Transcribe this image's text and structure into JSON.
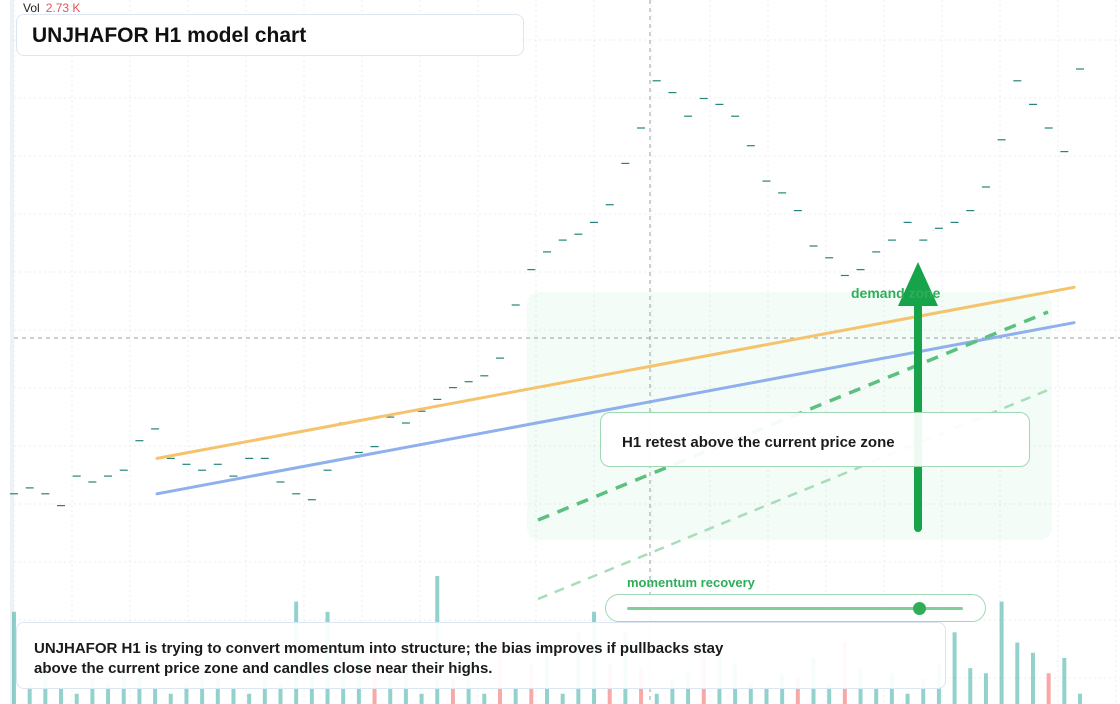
{
  "title": "UNJHAFOR H1 model chart",
  "volume": {
    "label": "Vol",
    "value": "2.73 K"
  },
  "annotations": {
    "callout": "H1 retest above the current price zone",
    "zone_label": "demand zone",
    "momentum_label": "momentum recovery",
    "momentum_level": 0.87,
    "note": "UNJHAFOR H1 is trying to convert momentum into structure; the bias improves if pullbacks stay above the current price zone and candles close near their highs."
  },
  "colors": {
    "up": "#26a69a",
    "down": "#ef5350",
    "ma_fast": "#f5c36b",
    "ma_slow": "#8fb0ec",
    "accent": "#16a34a"
  },
  "chart_data": {
    "type": "candlestick",
    "title": "UNJHAFOR H1 model chart",
    "grid": true,
    "ylim": [
      0,
      100
    ],
    "note": "Unlabeled price axis; values are relative price levels on a 0-100 scale.",
    "price": [
      {
        "x": 1,
        "open": 18,
        "close": 18
      },
      {
        "x": 2,
        "open": 19,
        "close": 19
      },
      {
        "x": 3,
        "open": 18,
        "close": 18
      },
      {
        "x": 4,
        "open": 16,
        "close": 16
      },
      {
        "x": 5,
        "open": 21,
        "close": 21
      },
      {
        "x": 6,
        "open": 20,
        "close": 20
      },
      {
        "x": 7,
        "open": 21,
        "close": 21
      },
      {
        "x": 8,
        "open": 22,
        "close": 22
      },
      {
        "x": 9,
        "open": 27,
        "close": 27
      },
      {
        "x": 10,
        "open": 29,
        "close": 29
      },
      {
        "x": 11,
        "open": 24,
        "close": 24
      },
      {
        "x": 12,
        "open": 23,
        "close": 23
      },
      {
        "x": 13,
        "open": 22,
        "close": 22
      },
      {
        "x": 14,
        "open": 23,
        "close": 23
      },
      {
        "x": 15,
        "open": 21,
        "close": 21
      },
      {
        "x": 16,
        "open": 24,
        "close": 24
      },
      {
        "x": 17,
        "open": 24,
        "close": 24
      },
      {
        "x": 18,
        "open": 20,
        "close": 20
      },
      {
        "x": 19,
        "open": 18,
        "close": 18
      },
      {
        "x": 20,
        "open": 17,
        "close": 17
      },
      {
        "x": 21,
        "open": 22,
        "close": 22
      },
      {
        "x": 22,
        "open": 30,
        "close": 30
      },
      {
        "x": 23,
        "open": 25,
        "close": 25
      },
      {
        "x": 24,
        "open": 26,
        "close": 26
      },
      {
        "x": 25,
        "open": 31,
        "close": 31
      },
      {
        "x": 26,
        "open": 30,
        "close": 30
      },
      {
        "x": 27,
        "open": 32,
        "close": 32
      },
      {
        "x": 28,
        "open": 34,
        "close": 34
      },
      {
        "x": 29,
        "open": 36,
        "close": 36
      },
      {
        "x": 30,
        "open": 37,
        "close": 37
      },
      {
        "x": 31,
        "open": 38,
        "close": 38
      },
      {
        "x": 32,
        "open": 41,
        "close": 41
      },
      {
        "x": 33,
        "open": 50,
        "close": 50
      },
      {
        "x": 34,
        "open": 56,
        "close": 56
      },
      {
        "x": 35,
        "open": 59,
        "close": 59
      },
      {
        "x": 36,
        "open": 61,
        "close": 61
      },
      {
        "x": 37,
        "open": 62,
        "close": 62
      },
      {
        "x": 38,
        "open": 64,
        "close": 64
      },
      {
        "x": 39,
        "open": 67,
        "close": 67
      },
      {
        "x": 40,
        "open": 74,
        "close": 74
      },
      {
        "x": 41,
        "open": 80,
        "close": 80
      },
      {
        "x": 42,
        "open": 88,
        "close": 88
      },
      {
        "x": 43,
        "open": 86,
        "close": 86
      },
      {
        "x": 44,
        "open": 82,
        "close": 82
      },
      {
        "x": 45,
        "open": 85,
        "close": 85
      },
      {
        "x": 46,
        "open": 84,
        "close": 84
      },
      {
        "x": 47,
        "open": 82,
        "close": 82
      },
      {
        "x": 48,
        "open": 77,
        "close": 77
      },
      {
        "x": 49,
        "open": 71,
        "close": 71
      },
      {
        "x": 50,
        "open": 69,
        "close": 69
      },
      {
        "x": 51,
        "open": 66,
        "close": 66
      },
      {
        "x": 52,
        "open": 60,
        "close": 60
      },
      {
        "x": 53,
        "open": 58,
        "close": 58
      },
      {
        "x": 54,
        "open": 55,
        "close": 55
      },
      {
        "x": 55,
        "open": 56,
        "close": 56
      },
      {
        "x": 56,
        "open": 59,
        "close": 59
      },
      {
        "x": 57,
        "open": 61,
        "close": 61
      },
      {
        "x": 58,
        "open": 64,
        "close": 64
      },
      {
        "x": 59,
        "open": 61,
        "close": 61
      },
      {
        "x": 60,
        "open": 63,
        "close": 63
      },
      {
        "x": 61,
        "open": 64,
        "close": 64
      },
      {
        "x": 62,
        "open": 66,
        "close": 66
      },
      {
        "x": 63,
        "open": 70,
        "close": 70
      },
      {
        "x": 64,
        "open": 78,
        "close": 78
      },
      {
        "x": 65,
        "open": 88,
        "close": 88
      },
      {
        "x": 66,
        "open": 84,
        "close": 84
      },
      {
        "x": 67,
        "open": 80,
        "close": 80
      },
      {
        "x": 68,
        "open": 76,
        "close": 76
      },
      {
        "x": 69,
        "open": 90,
        "close": 90
      }
    ],
    "volume": [
      18,
      4,
      6,
      3,
      2,
      5,
      4,
      8,
      6,
      3,
      2,
      4,
      7,
      5,
      3,
      2,
      6,
      4,
      20,
      6,
      18,
      9,
      12,
      11,
      9,
      10,
      2,
      25,
      5,
      9,
      2,
      12,
      3,
      8,
      10,
      2,
      14,
      18,
      8,
      14,
      7,
      2,
      5,
      6,
      11,
      12,
      8,
      4,
      3,
      6,
      5,
      9,
      4,
      12,
      7,
      3,
      6,
      2,
      5,
      8,
      14,
      7,
      6,
      20,
      12,
      10,
      6,
      9,
      2
    ],
    "volume_up": [
      true,
      true,
      true,
      true,
      true,
      true,
      true,
      true,
      true,
      true,
      true,
      true,
      true,
      true,
      true,
      true,
      true,
      true,
      true,
      true,
      true,
      true,
      true,
      false,
      true,
      true,
      true,
      true,
      false,
      true,
      true,
      false,
      true,
      false,
      true,
      true,
      true,
      true,
      false,
      true,
      false,
      true,
      true,
      true,
      false,
      true,
      true,
      true,
      true,
      true,
      false,
      true,
      true,
      false,
      true,
      true,
      true,
      true,
      true,
      true,
      true,
      true,
      true,
      true,
      true,
      true,
      false,
      true,
      true
    ],
    "series": [
      {
        "name": "",
        "type": "line",
        "x": [
          1,
          69
        ],
        "y": [
          24,
          53
        ]
      },
      {
        "name": "",
        "type": "line",
        "x": [
          1,
          69
        ],
        "y": [
          18,
          47
        ]
      }
    ]
  }
}
